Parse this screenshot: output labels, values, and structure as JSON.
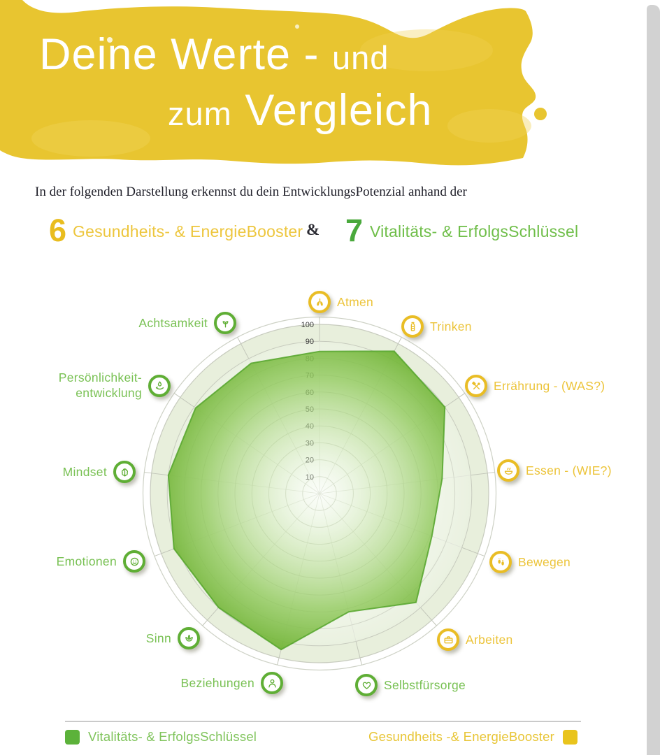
{
  "header": {
    "title_line1_main": "Deine Werte -",
    "title_line1_suffix": "und",
    "title_line2_prefix": "zum",
    "title_line2_main": "Vergleich"
  },
  "intro": "In der folgenden Darstellung erkennst du dein EntwicklungsPotenzial anhand der",
  "stats": {
    "left_number": "6",
    "left_label": "Gesundheits- & EnergieBooster",
    "ampersand": "&",
    "right_number": "7",
    "right_label": "Vitalitäts- & ErfolgsSchlüssel"
  },
  "colors": {
    "brush_yellow": "#e8c530",
    "yellow_accent": "#e9bd25",
    "yellow_text": "#ecc43a",
    "green_accent": "#5fae35",
    "green_text": "#79c154",
    "polygon_stroke": "#55a42c",
    "ring_band_fill": "#e8efdc",
    "side_strip": "#d2d2d2"
  },
  "chart_data": {
    "type": "radar",
    "categories": [
      "Atmen",
      "Trinken",
      "Errährung - (WAS?)",
      "Essen - (WIE?)",
      "Bewegen",
      "Arbeiten",
      "Selbstfürsorge",
      "Beziehungen",
      "Sinn",
      "Emotionen",
      "Mindset",
      "Persönlichkeit- entwicklung",
      "Achtsamkeit"
    ],
    "axis_icons": [
      "lungs-icon",
      "bottle-icon",
      "crossed-utensils-icon",
      "bowl-icon",
      "feet-icon",
      "briefcase-icon",
      "heart-icon",
      "person-icon",
      "lotus-icon",
      "smiley-face-icon",
      "brain-icon",
      "hand-drop-icon",
      "sprout-icon"
    ],
    "axis_groups": [
      "booster",
      "booster",
      "booster",
      "booster",
      "booster",
      "booster",
      "schluessel",
      "schluessel",
      "schluessel",
      "schluessel",
      "schluessel",
      "schluessel",
      "schluessel"
    ],
    "series": [
      {
        "name": "Vitalitäts- & ErfolgsSchlüssel",
        "values": [
          84,
          95,
          90,
          73,
          71,
          86,
          72,
          95,
          90,
          92,
          90,
          89,
          87
        ]
      }
    ],
    "radial_ticks": [
      10,
      20,
      30,
      40,
      50,
      60,
      70,
      80,
      90,
      100
    ],
    "rlim": [
      0,
      100
    ],
    "grid": true,
    "legend_position": "bottom"
  },
  "legend": {
    "left": {
      "label": "Vitalitäts- &  ErfolgsSchlüssel"
    },
    "right": {
      "label": "Gesundheits -& EnergieBooster"
    }
  }
}
